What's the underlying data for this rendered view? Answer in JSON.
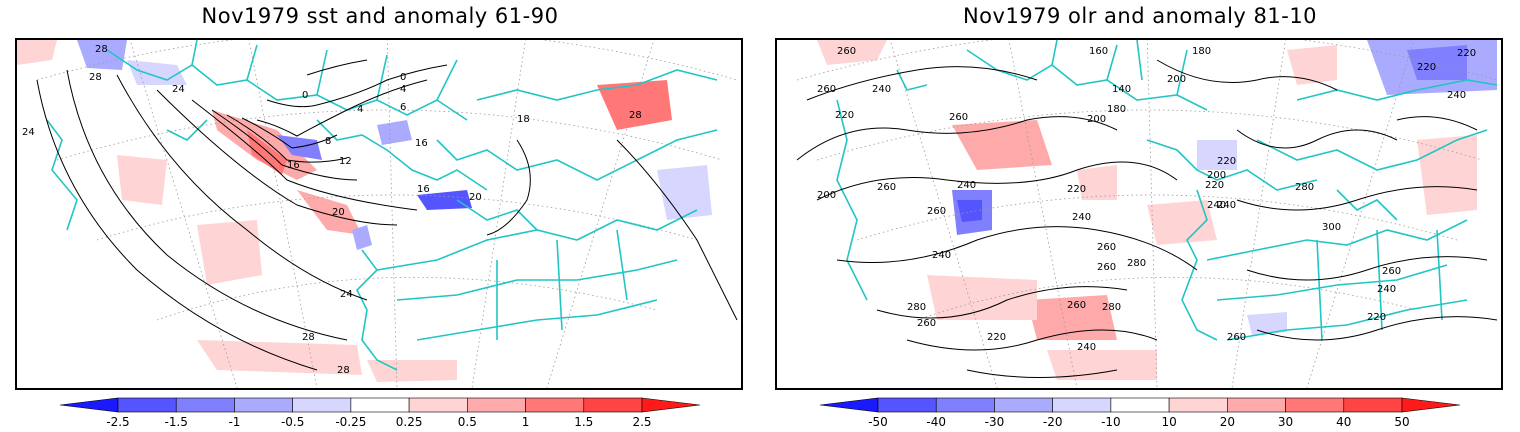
{
  "panels": [
    {
      "id": "sst",
      "title": "Nov1979 sst and anomaly 61-90",
      "colorbar": {
        "ticks": [
          "-2.5",
          "-1.5",
          "-1",
          "-0.5",
          "-0.25",
          "0.25",
          "0.5",
          "1",
          "1.5",
          "2.5"
        ],
        "colors": [
          "#1a1aff",
          "#5555ff",
          "#8080ff",
          "#aaaaff",
          "#d6d6ff",
          "#ffffff",
          "#ffd4d4",
          "#ffaaaa",
          "#ff7777",
          "#ff4444",
          "#ff1a1a"
        ]
      },
      "contour_labels": [
        "28",
        "28",
        "24",
        "20",
        "16",
        "12",
        "8",
        "6",
        "4",
        "4",
        "0",
        "0",
        "16",
        "16",
        "20",
        "24",
        "28",
        "28",
        "24",
        "18",
        "28"
      ]
    },
    {
      "id": "olr",
      "title": "Nov1979 olr and anomaly 81-10",
      "colorbar": {
        "ticks": [
          "-50",
          "-40",
          "-30",
          "-20",
          "-10",
          "10",
          "20",
          "30",
          "40",
          "50"
        ],
        "colors": [
          "#1a1aff",
          "#5555ff",
          "#8080ff",
          "#aaaaff",
          "#d6d6ff",
          "#ffffff",
          "#ffd4d4",
          "#ffaaaa",
          "#ff7777",
          "#ff4444",
          "#ff1a1a"
        ]
      },
      "contour_labels": [
        "260",
        "240",
        "220",
        "260",
        "260",
        "200",
        "240",
        "260",
        "160",
        "180",
        "140",
        "200",
        "180",
        "200",
        "260",
        "220",
        "240",
        "220",
        "240",
        "280",
        "260",
        "280",
        "260",
        "240",
        "220",
        "260",
        "280",
        "240",
        "260",
        "220",
        "240",
        "260",
        "220",
        "200",
        "300",
        "280",
        "240",
        "220",
        "260",
        "220",
        "240"
      ]
    }
  ],
  "colors": {
    "coast": "#22c5c5",
    "contour": "#000000",
    "grid": "#999999"
  }
}
